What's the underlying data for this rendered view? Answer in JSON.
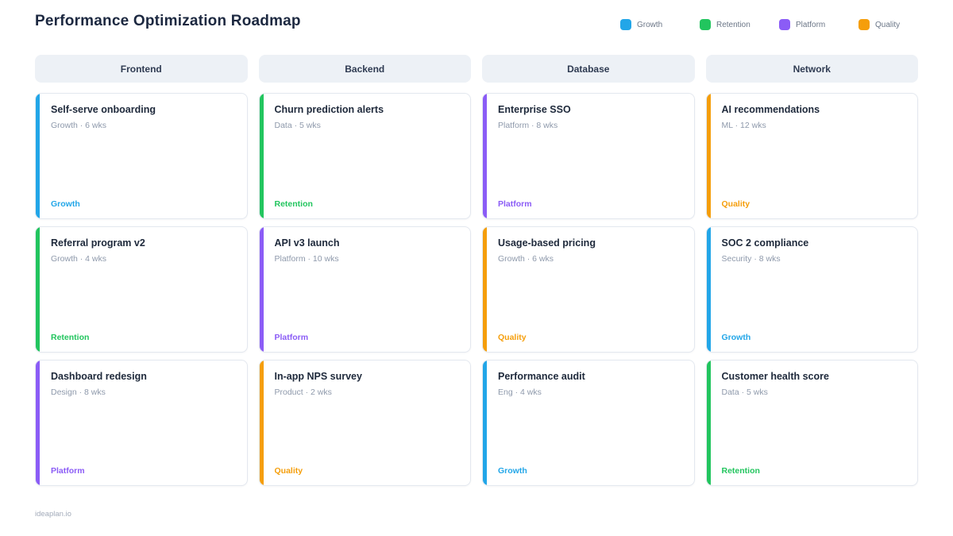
{
  "page": {
    "title": "Performance Optimization Roadmap",
    "footer": "ideaplan.io"
  },
  "legend": [
    {
      "label": "Growth",
      "color": "#22A6E8"
    },
    {
      "label": "Retention",
      "color": "#22C55E"
    },
    {
      "label": "Platform",
      "color": "#8B5CF6"
    },
    {
      "label": "Quality",
      "color": "#F59E0B"
    }
  ],
  "tag_colors": {
    "Growth": "#22A6E8",
    "Retention": "#22C55E",
    "Platform": "#8B5CF6",
    "Quality": "#F59E0B"
  },
  "columns": [
    {
      "name": "Frontend",
      "cards": [
        {
          "title": "Self-serve onboarding",
          "meta": "Growth · 6 wks",
          "tag": "Growth"
        },
        {
          "title": "Referral program v2",
          "meta": "Growth · 4 wks",
          "tag": "Retention"
        },
        {
          "title": "Dashboard redesign",
          "meta": "Design · 8 wks",
          "tag": "Platform"
        }
      ]
    },
    {
      "name": "Backend",
      "cards": [
        {
          "title": "Churn prediction alerts",
          "meta": "Data · 5 wks",
          "tag": "Retention"
        },
        {
          "title": "API v3 launch",
          "meta": "Platform · 10 wks",
          "tag": "Platform"
        },
        {
          "title": "In-app NPS survey",
          "meta": "Product · 2 wks",
          "tag": "Quality"
        }
      ]
    },
    {
      "name": "Database",
      "cards": [
        {
          "title": "Enterprise SSO",
          "meta": "Platform · 8 wks",
          "tag": "Platform"
        },
        {
          "title": "Usage-based pricing",
          "meta": "Growth · 6 wks",
          "tag": "Quality"
        },
        {
          "title": "Performance audit",
          "meta": "Eng · 4 wks",
          "tag": "Growth"
        }
      ]
    },
    {
      "name": "Network",
      "cards": [
        {
          "title": "AI recommendations",
          "meta": "ML · 12 wks",
          "tag": "Quality"
        },
        {
          "title": "SOC 2 compliance",
          "meta": "Security · 8 wks",
          "tag": "Growth"
        },
        {
          "title": "Customer health score",
          "meta": "Data · 5 wks",
          "tag": "Retention"
        }
      ]
    }
  ]
}
